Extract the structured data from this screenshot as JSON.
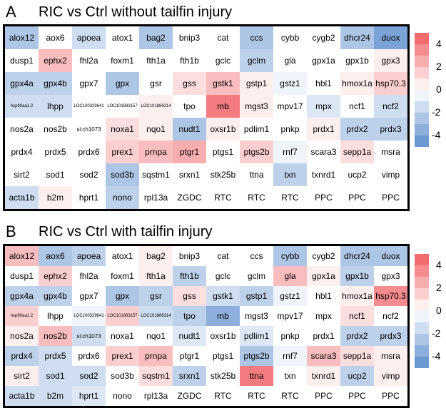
{
  "chart_data": [
    {
      "type": "heatmap",
      "panel_label": "A",
      "title": "RIC vs Ctrl without tailfin injury",
      "rows": [
        [
          [
            "alox12",
            -2.5
          ],
          [
            "aox6",
            0
          ],
          [
            "apoea",
            -1.5
          ],
          [
            "atox1",
            0
          ],
          [
            "bag2",
            -2.5
          ],
          [
            "bnip3",
            0
          ],
          [
            "cat",
            0
          ],
          [
            "ccs",
            -2.5
          ],
          [
            "cybb",
            0
          ],
          [
            "cygb2",
            0
          ],
          [
            "dhcr24",
            -2.5
          ],
          [
            "duox",
            -4
          ]
        ],
        [
          [
            "dusp1",
            0
          ],
          [
            "ephx2",
            2
          ],
          [
            "fhl2a",
            0
          ],
          [
            "foxm1",
            0
          ],
          [
            "fth1a",
            0
          ],
          [
            "fth1b",
            0
          ],
          [
            "gclc",
            0
          ],
          [
            "gclm",
            -2
          ],
          [
            "gla",
            0
          ],
          [
            "gpx1a",
            0
          ],
          [
            "gpx1b",
            0
          ],
          [
            "gpx3",
            0.5
          ]
        ],
        [
          [
            "gpx4a",
            -2
          ],
          [
            "gpx4b",
            -2
          ],
          [
            "gpx7",
            0
          ],
          [
            "gpx",
            -2.5
          ],
          [
            "gsr",
            0
          ],
          [
            "gss",
            1
          ],
          [
            "gstk1",
            2
          ],
          [
            "gstp1",
            0.5
          ],
          [
            "gstz1",
            -0.5
          ],
          [
            "hbl1",
            0
          ],
          [
            "hmox1a",
            0.5
          ],
          [
            "hsp70.3",
            1.5
          ]
        ],
        [
          [
            "hsp90aa1.2",
            -1.5
          ],
          [
            "lhpp",
            -1.5
          ],
          [
            "LOC100329641",
            0
          ],
          [
            "LOC101883157",
            0
          ],
          [
            "LOC101886314",
            0.5
          ],
          [
            "tpo",
            0
          ],
          [
            "mb",
            4
          ],
          [
            "mgst3",
            0.5
          ],
          [
            "mpv17",
            0
          ],
          [
            "mpx",
            -1
          ],
          [
            "ncf1",
            0
          ],
          [
            "ncf2",
            -1.5
          ]
        ],
        [
          [
            "nos2a",
            0
          ],
          [
            "nos2b",
            0
          ],
          [
            "si:ch1073",
            0
          ],
          [
            "noxa1",
            1
          ],
          [
            "nqo1",
            0.5
          ],
          [
            "nudt1",
            -2.5
          ],
          [
            "oxsr1b",
            0.5
          ],
          [
            "pdlim1",
            0
          ],
          [
            "pnkp",
            0
          ],
          [
            "prdx1",
            0.5
          ],
          [
            "prdx2",
            -2
          ],
          [
            "prdx3",
            -2
          ]
        ],
        [
          [
            "prdx4",
            0
          ],
          [
            "prdx5",
            0
          ],
          [
            "prdx6",
            0
          ],
          [
            "prex1",
            1.5
          ],
          [
            "prnpa",
            2
          ],
          [
            "ptgr1",
            2.5
          ],
          [
            "ptgs1",
            0
          ],
          [
            "ptgs2b",
            1.5
          ],
          [
            "rnf7",
            -0.5
          ],
          [
            "scara3",
            0
          ],
          [
            "sepp1a",
            1
          ],
          [
            "msra",
            0
          ]
        ],
        [
          [
            "sirt2",
            0
          ],
          [
            "sod1",
            0
          ],
          [
            "sod2",
            0
          ],
          [
            "sod3b",
            -2.5
          ],
          [
            "sqstm1",
            0
          ],
          [
            "srxn1",
            0
          ],
          [
            "stk25b",
            0
          ],
          [
            "ttna",
            0
          ],
          [
            "txn",
            -2
          ],
          [
            "txnrd1",
            0
          ],
          [
            "ucp2",
            0
          ],
          [
            "vimp",
            0
          ]
        ],
        [
          [
            "acta1b",
            -1.5
          ],
          [
            "b2m",
            0.5
          ],
          [
            "hprt1",
            0
          ],
          [
            "nono",
            -2
          ],
          [
            "rpl13a",
            0
          ],
          [
            "ZGDC",
            0
          ],
          [
            "RTC",
            0
          ],
          [
            "RTC",
            0
          ],
          [
            "RTC",
            0
          ],
          [
            "PPC",
            0
          ],
          [
            "PPC",
            0
          ],
          [
            "PPC",
            0
          ]
        ]
      ],
      "colorbar": {
        "ticks": [
          "4",
          "2",
          "0",
          "-2",
          "-4"
        ],
        "range": [
          -5,
          5
        ]
      },
      "colors": {
        "high": "#f15a5f",
        "mid": "#ffffff",
        "low": "#5b8ccd"
      }
    },
    {
      "type": "heatmap",
      "panel_label": "B",
      "title": "RIC vs Ctrl with tailfin injury",
      "rows": [
        [
          [
            "alox12",
            2
          ],
          [
            "aox6",
            -2.5
          ],
          [
            "apoea",
            -2
          ],
          [
            "atox1",
            0
          ],
          [
            "bag2",
            0.5
          ],
          [
            "bnip3",
            0
          ],
          [
            "cat",
            0
          ],
          [
            "ccs",
            0
          ],
          [
            "cybb",
            -2.5
          ],
          [
            "cygb2",
            0
          ],
          [
            "dhcr24",
            -2.5
          ],
          [
            "duox",
            -2.5
          ]
        ],
        [
          [
            "dusp1",
            0
          ],
          [
            "ephx2",
            1.5
          ],
          [
            "fhl2a",
            0
          ],
          [
            "foxm1",
            0
          ],
          [
            "fth1a",
            0.5
          ],
          [
            "fth1b",
            -2
          ],
          [
            "gclc",
            0
          ],
          [
            "gclm",
            0
          ],
          [
            "gla",
            2
          ],
          [
            "gpx1a",
            0.5
          ],
          [
            "gpx1b",
            -2
          ],
          [
            "gpx3",
            0
          ]
        ],
        [
          [
            "gpx4a",
            -2
          ],
          [
            "gpx4b",
            -2
          ],
          [
            "gpx7",
            0
          ],
          [
            "gpx",
            -2.5
          ],
          [
            "gsr",
            -2
          ],
          [
            "gss",
            1
          ],
          [
            "gstk1",
            -1.5
          ],
          [
            "gstp1",
            -2
          ],
          [
            "gstz1",
            -0.5
          ],
          [
            "hbl1",
            0
          ],
          [
            "hmox1a",
            0.5
          ],
          [
            "hsp70.3",
            3.5
          ]
        ],
        [
          [
            "hsp90aa1.2",
            1.5
          ],
          [
            "lhpp",
            0
          ],
          [
            "LOC100329641",
            -0.5
          ],
          [
            "LOC101883157",
            1.5
          ],
          [
            "LOC101886314",
            -1.5
          ],
          [
            "tpo",
            -2
          ],
          [
            "mb",
            -3.5
          ],
          [
            "mgst3",
            0
          ],
          [
            "mpv17",
            0
          ],
          [
            "mpx",
            0
          ],
          [
            "ncf1",
            1
          ],
          [
            "ncf2",
            0
          ]
        ],
        [
          [
            "nos2a",
            0.5
          ],
          [
            "nos2b",
            2
          ],
          [
            "si:ch1073",
            -1.5
          ],
          [
            "noxa1",
            0
          ],
          [
            "nqo1",
            0
          ],
          [
            "nudt1",
            -1
          ],
          [
            "oxsr1b",
            0
          ],
          [
            "pdlim1",
            -1
          ],
          [
            "pnkp",
            0
          ],
          [
            "prdx1",
            0
          ],
          [
            "prdx2",
            -2
          ],
          [
            "prdx3",
            -2
          ]
        ],
        [
          [
            "prdx4",
            -2
          ],
          [
            "prdx5",
            -1.5
          ],
          [
            "prdx6",
            0
          ],
          [
            "prex1",
            1.5
          ],
          [
            "prnpa",
            2
          ],
          [
            "ptgr1",
            0
          ],
          [
            "ptgs1",
            0
          ],
          [
            "ptgs2b",
            -2.5
          ],
          [
            "rnf7",
            -0.5
          ],
          [
            "scara3",
            2
          ],
          [
            "sepp1a",
            1
          ],
          [
            "msra",
            0.5
          ]
        ],
        [
          [
            "sirt2",
            0.5
          ],
          [
            "sod1",
            -1.5
          ],
          [
            "sod2",
            -1.5
          ],
          [
            "sod3b",
            0
          ],
          [
            "sqstm1",
            1
          ],
          [
            "srxn1",
            -2
          ],
          [
            "stk25b",
            0
          ],
          [
            "ttna",
            4
          ],
          [
            "txn",
            0
          ],
          [
            "txnrd1",
            0.5
          ],
          [
            "ucp2",
            -2
          ],
          [
            "vimp",
            0.5
          ]
        ],
        [
          [
            "acta1b",
            -1.5
          ],
          [
            "b2m",
            -1.5
          ],
          [
            "hprt1",
            -1
          ],
          [
            "nono",
            0
          ],
          [
            "rpl13a",
            0
          ],
          [
            "ZGDC",
            0
          ],
          [
            "RTC",
            0
          ],
          [
            "RTC",
            0
          ],
          [
            "RTC",
            0
          ],
          [
            "PPC",
            0
          ],
          [
            "PPC",
            0
          ],
          [
            "PPC",
            0
          ]
        ]
      ],
      "colorbar": {
        "ticks": [
          "4",
          "2",
          "0",
          "-2",
          "-4"
        ],
        "range": [
          -5,
          5
        ]
      },
      "colors": {
        "high": "#f15a5f",
        "mid": "#ffffff",
        "low": "#5b8ccd"
      }
    }
  ]
}
